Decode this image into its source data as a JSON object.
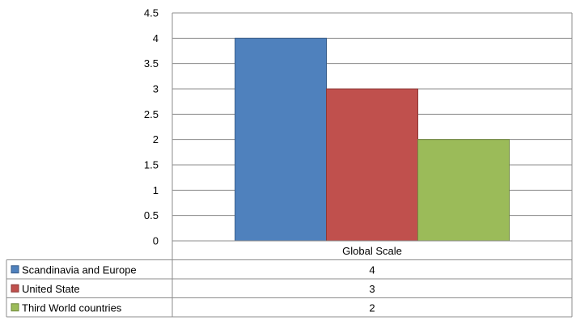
{
  "chart_data": {
    "type": "bar",
    "categories": [
      "Global Scale"
    ],
    "series": [
      {
        "name": "Scandinavia and Europe",
        "values": [
          4
        ],
        "color": "#4F81BD",
        "edge": "#385D8A"
      },
      {
        "name": "United State",
        "values": [
          3
        ],
        "color": "#C0504D",
        "edge": "#8C3836"
      },
      {
        "name": "Third World countries",
        "values": [
          2
        ],
        "color": "#9BBB59",
        "edge": "#71893F"
      }
    ],
    "yticks": [
      "0",
      "0.5",
      "1",
      "1.5",
      "2",
      "2.5",
      "3",
      "3.5",
      "4",
      "4.5"
    ],
    "ylim": [
      0,
      4.5
    ],
    "grid": true,
    "legend": "data-table-left",
    "table_values": [
      "4",
      "3",
      "2"
    ]
  }
}
